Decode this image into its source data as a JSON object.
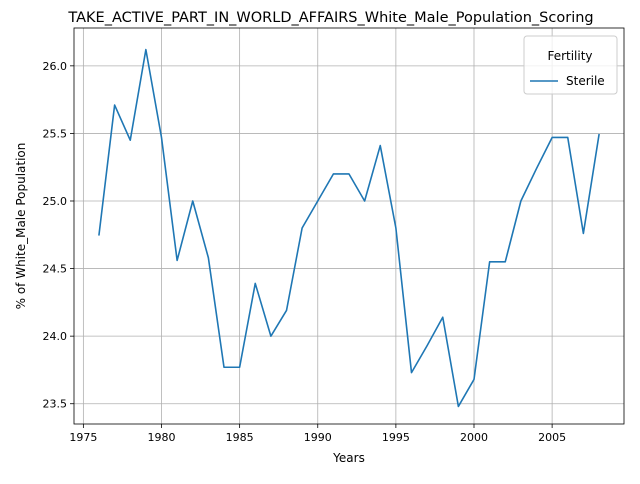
{
  "chart_data": {
    "type": "line",
    "title": "TAKE_ACTIVE_PART_IN_WORLD_AFFAIRS_White_Male_Population_Scoring",
    "xlabel": "Years",
    "ylabel": "% of White_Male Population",
    "xlim": [
      1974.4,
      2009.6
    ],
    "ylim": [
      23.35,
      26.28
    ],
    "xticks": [
      1975,
      1980,
      1985,
      1990,
      1995,
      2000,
      2005
    ],
    "yticks": [
      23.5,
      24.0,
      24.5,
      25.0,
      25.5,
      26.0
    ],
    "grid": true,
    "legend": {
      "title": "Fertility",
      "position": "top-right"
    },
    "series": [
      {
        "name": "Sterile",
        "color": "#1f77b4",
        "x": [
          1976,
          1977,
          1978,
          1979,
          1980,
          1981,
          1982,
          1983,
          1984,
          1985,
          1986,
          1987,
          1988,
          1989,
          1990,
          1991,
          1992,
          1993,
          1994,
          1995,
          1996,
          1997,
          1998,
          1999,
          2000,
          2001,
          2002,
          2003,
          2004,
          2005,
          2006,
          2007,
          2008
        ],
        "y": [
          24.75,
          25.71,
          25.45,
          26.12,
          25.47,
          24.56,
          25.0,
          24.58,
          23.77,
          23.77,
          24.39,
          24.0,
          24.19,
          24.8,
          25.0,
          25.2,
          25.2,
          25.0,
          25.41,
          24.8,
          23.73,
          23.93,
          24.14,
          23.48,
          23.68,
          24.55,
          24.55,
          25.0,
          25.24,
          25.47,
          25.47,
          24.76,
          25.49
        ]
      }
    ]
  }
}
